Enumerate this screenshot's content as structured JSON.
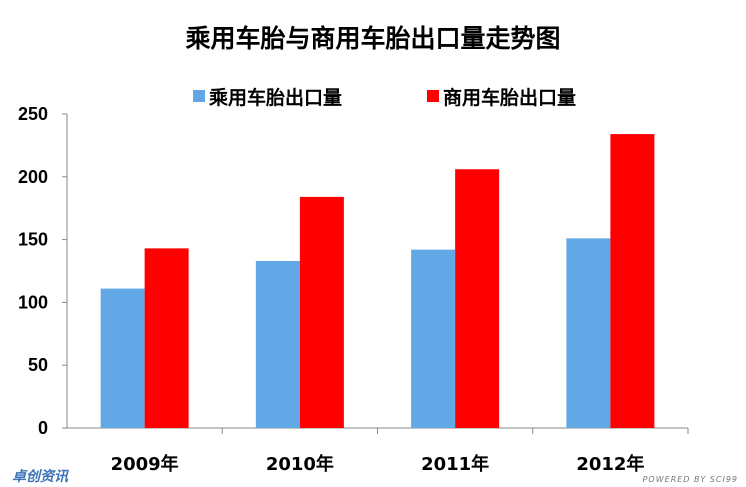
{
  "chart_data": {
    "type": "bar",
    "title": "乘用车胎与商用车胎出口量走势图",
    "categories": [
      "2009年",
      "2010年",
      "2011年",
      "2012年"
    ],
    "series": [
      {
        "name": "乘用车胎出口量",
        "color": "#63a8e6",
        "values": [
          111,
          133,
          142,
          151
        ]
      },
      {
        "name": "商用车胎出口量",
        "color": "#ff0000",
        "values": [
          143,
          184,
          206,
          234
        ]
      }
    ],
    "ylim": [
      0,
      250
    ],
    "yticks": [
      0,
      50,
      100,
      150,
      200,
      250
    ],
    "xlabel": "",
    "ylabel": "",
    "legend_position": "top",
    "grid": false
  },
  "branding": {
    "logo_text": "卓创资讯",
    "powered_text": "POWERED BY SCI99"
  }
}
